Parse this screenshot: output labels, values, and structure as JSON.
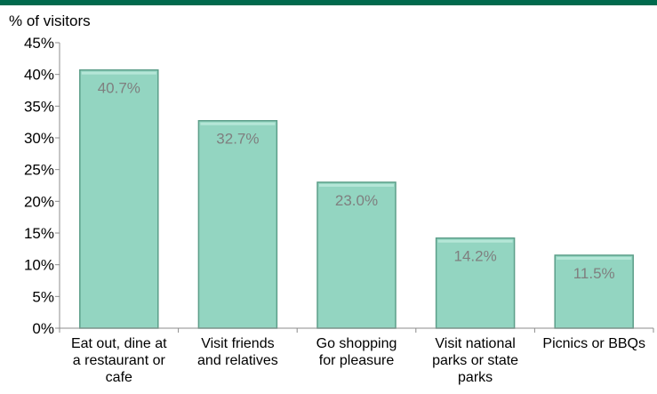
{
  "chart_data": {
    "type": "bar",
    "ylabel": "% of visitors",
    "categories": [
      [
        "Eat out, dine at",
        "a restaurant or",
        "cafe"
      ],
      [
        "Visit friends",
        "and relatives"
      ],
      [
        "Go shopping",
        "for pleasure"
      ],
      [
        "Visit national",
        "parks or state",
        "parks"
      ],
      [
        "Picnics or BBQs"
      ]
    ],
    "values": [
      40.7,
      32.7,
      23.0,
      14.2,
      11.5
    ],
    "value_labels": [
      "40.7%",
      "32.7%",
      "23.0%",
      "14.2%",
      "11.5%"
    ],
    "ylim": [
      0,
      45
    ],
    "yticks": [
      0,
      5,
      10,
      15,
      20,
      25,
      30,
      35,
      40,
      45
    ],
    "ytick_labels": [
      "0%",
      "5%",
      "10%",
      "15%",
      "20%",
      "25%",
      "30%",
      "35%",
      "40%",
      "45%"
    ],
    "grid": false,
    "colors": {
      "top_band": "#006A4D",
      "bar_fill": "#93D5C1",
      "bar_edge": "#5C9E89",
      "bar_highlight": "#B5E6D7",
      "value_label": "#7F7F7F",
      "axis": "#8C8C8C",
      "text": "#000000"
    }
  }
}
